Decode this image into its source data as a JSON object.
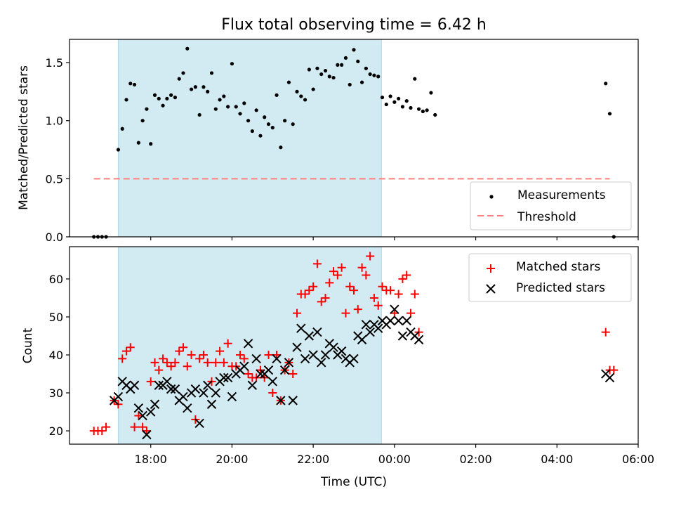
{
  "chart_data": [
    {
      "type": "scatter",
      "title": "Flux total observing time = 6.42 h",
      "ylabel": "Matched/Predicted stars",
      "xlabel": "",
      "xlim_hours": [
        16.0,
        30.0
      ],
      "ylim": [
        0,
        1.7
      ],
      "yticks": [
        0.0,
        0.5,
        1.0,
        1.5
      ],
      "ytick_labels": [
        "0.0",
        "0.5",
        "1.0",
        "1.5"
      ],
      "grid": false,
      "legend_position": "lower-right",
      "shaded_interval_hours": [
        17.2,
        23.68
      ],
      "shade_color": "#add8e6",
      "threshold": {
        "name": "Threshold",
        "value": 0.5,
        "x_range_hours": [
          16.6,
          29.3
        ],
        "color": "#ff7f7f",
        "style": "dashed"
      },
      "series": [
        {
          "name": "Measurements",
          "marker": "dot",
          "color": "#000000",
          "points": [
            [
              16.6,
              0.0
            ],
            [
              16.7,
              0.0
            ],
            [
              16.8,
              0.0
            ],
            [
              16.9,
              0.0
            ],
            [
              17.2,
              0.75
            ],
            [
              17.3,
              0.93
            ],
            [
              17.4,
              1.18
            ],
            [
              17.5,
              1.32
            ],
            [
              17.6,
              1.31
            ],
            [
              17.7,
              0.81
            ],
            [
              17.8,
              1.0
            ],
            [
              17.9,
              1.1
            ],
            [
              18.0,
              0.8
            ],
            [
              18.1,
              1.22
            ],
            [
              18.2,
              1.19
            ],
            [
              18.3,
              1.13
            ],
            [
              18.4,
              1.19
            ],
            [
              18.5,
              1.22
            ],
            [
              18.6,
              1.2
            ],
            [
              18.7,
              1.36
            ],
            [
              18.8,
              1.41
            ],
            [
              18.9,
              1.62
            ],
            [
              19.0,
              1.27
            ],
            [
              19.1,
              1.29
            ],
            [
              19.2,
              1.05
            ],
            [
              19.3,
              1.29
            ],
            [
              19.4,
              1.25
            ],
            [
              19.5,
              1.41
            ],
            [
              19.6,
              1.1
            ],
            [
              19.7,
              1.18
            ],
            [
              19.8,
              1.21
            ],
            [
              19.9,
              1.12
            ],
            [
              20.0,
              1.49
            ],
            [
              20.1,
              1.12
            ],
            [
              20.2,
              1.06
            ],
            [
              20.3,
              1.15
            ],
            [
              20.4,
              1.0
            ],
            [
              20.5,
              0.91
            ],
            [
              20.6,
              1.09
            ],
            [
              20.7,
              0.87
            ],
            [
              20.8,
              1.03
            ],
            [
              20.9,
              0.97
            ],
            [
              21.0,
              0.94
            ],
            [
              21.1,
              1.22
            ],
            [
              21.2,
              0.77
            ],
            [
              21.3,
              1.0
            ],
            [
              21.4,
              1.33
            ],
            [
              21.5,
              0.97
            ],
            [
              21.6,
              1.25
            ],
            [
              21.7,
              1.21
            ],
            [
              21.8,
              1.18
            ],
            [
              21.9,
              1.44
            ],
            [
              22.0,
              1.27
            ],
            [
              22.1,
              1.45
            ],
            [
              22.2,
              1.4
            ],
            [
              22.3,
              1.43
            ],
            [
              22.4,
              1.38
            ],
            [
              22.5,
              1.37
            ],
            [
              22.6,
              1.48
            ],
            [
              22.7,
              1.48
            ],
            [
              22.8,
              1.54
            ],
            [
              22.9,
              1.31
            ],
            [
              23.0,
              1.61
            ],
            [
              23.1,
              1.51
            ],
            [
              23.2,
              1.33
            ],
            [
              23.3,
              1.45
            ],
            [
              23.4,
              1.4
            ],
            [
              23.5,
              1.39
            ],
            [
              23.6,
              1.38
            ],
            [
              23.7,
              1.2
            ],
            [
              23.8,
              1.14
            ],
            [
              23.9,
              1.21
            ],
            [
              24.0,
              1.16
            ],
            [
              24.1,
              1.19
            ],
            [
              24.2,
              1.12
            ],
            [
              24.3,
              1.17
            ],
            [
              24.4,
              1.11
            ],
            [
              24.5,
              1.36
            ],
            [
              24.6,
              1.1
            ],
            [
              24.7,
              1.08
            ],
            [
              24.8,
              1.09
            ],
            [
              24.9,
              1.24
            ],
            [
              25.0,
              1.05
            ],
            [
              29.2,
              1.32
            ],
            [
              29.3,
              1.06
            ],
            [
              29.4,
              0.0
            ]
          ]
        }
      ]
    },
    {
      "type": "scatter",
      "title": "",
      "ylabel": "Count",
      "xlabel": "Time (UTC)",
      "xlim_hours": [
        16.0,
        30.0
      ],
      "xticks_hours": [
        18,
        20,
        22,
        24,
        26,
        28,
        30
      ],
      "xtick_labels": [
        "18:00",
        "20:00",
        "22:00",
        "00:00",
        "02:00",
        "04:00",
        "06:00"
      ],
      "ylim": [
        16.5,
        68.5
      ],
      "yticks": [
        20,
        30,
        40,
        50,
        60
      ],
      "ytick_labels": [
        "20",
        "30",
        "40",
        "50",
        "60"
      ],
      "grid": false,
      "legend_position": "upper-right",
      "shaded_interval_hours": [
        17.2,
        23.68
      ],
      "shade_color": "#add8e6",
      "series": [
        {
          "name": "Matched stars",
          "marker": "plus",
          "color": "#ff0000",
          "points": [
            [
              16.6,
              20
            ],
            [
              16.7,
              20
            ],
            [
              16.8,
              20
            ],
            [
              16.9,
              21
            ],
            [
              17.1,
              28
            ],
            [
              17.2,
              27
            ],
            [
              17.3,
              39
            ],
            [
              17.4,
              41
            ],
            [
              17.5,
              42
            ],
            [
              17.6,
              21
            ],
            [
              17.7,
              24
            ],
            [
              17.8,
              21
            ],
            [
              17.9,
              20
            ],
            [
              18.0,
              33
            ],
            [
              18.1,
              38
            ],
            [
              18.2,
              36
            ],
            [
              18.3,
              39
            ],
            [
              18.4,
              38
            ],
            [
              18.5,
              37
            ],
            [
              18.6,
              38
            ],
            [
              18.7,
              41
            ],
            [
              18.8,
              42
            ],
            [
              18.9,
              37
            ],
            [
              19.0,
              40
            ],
            [
              19.1,
              23
            ],
            [
              19.2,
              39
            ],
            [
              19.3,
              40
            ],
            [
              19.4,
              38
            ],
            [
              19.5,
              33
            ],
            [
              19.6,
              38
            ],
            [
              19.7,
              41
            ],
            [
              19.8,
              38
            ],
            [
              19.9,
              43
            ],
            [
              20.0,
              37
            ],
            [
              20.1,
              37
            ],
            [
              20.2,
              40
            ],
            [
              20.3,
              39
            ],
            [
              20.4,
              35
            ],
            [
              20.5,
              34
            ],
            [
              20.6,
              34
            ],
            [
              20.7,
              36
            ],
            [
              20.8,
              34
            ],
            [
              20.9,
              40
            ],
            [
              21.0,
              30
            ],
            [
              21.1,
              40
            ],
            [
              21.2,
              28
            ],
            [
              21.3,
              36
            ],
            [
              21.4,
              38
            ],
            [
              21.5,
              35
            ],
            [
              21.6,
              51
            ],
            [
              21.7,
              56
            ],
            [
              21.8,
              56
            ],
            [
              21.9,
              57
            ],
            [
              22.0,
              58
            ],
            [
              22.1,
              64
            ],
            [
              22.2,
              54
            ],
            [
              22.3,
              55
            ],
            [
              22.4,
              59
            ],
            [
              22.5,
              62
            ],
            [
              22.6,
              61
            ],
            [
              22.7,
              63
            ],
            [
              22.8,
              51
            ],
            [
              22.9,
              58
            ],
            [
              23.0,
              57
            ],
            [
              23.1,
              52
            ],
            [
              23.2,
              63
            ],
            [
              23.3,
              61
            ],
            [
              23.4,
              66
            ],
            [
              23.5,
              55
            ],
            [
              23.6,
              53
            ],
            [
              23.7,
              58
            ],
            [
              23.8,
              57
            ],
            [
              23.9,
              57
            ],
            [
              24.0,
              51
            ],
            [
              24.1,
              56
            ],
            [
              24.2,
              60
            ],
            [
              24.3,
              61
            ],
            [
              24.4,
              51
            ],
            [
              24.5,
              56
            ],
            [
              24.6,
              46
            ],
            [
              29.2,
              46
            ],
            [
              29.3,
              36
            ],
            [
              29.4,
              36
            ]
          ]
        },
        {
          "name": "Predicted stars",
          "marker": "x",
          "color": "#000000",
          "points": [
            [
              17.1,
              28
            ],
            [
              17.2,
              29
            ],
            [
              17.3,
              33
            ],
            [
              17.4,
              32
            ],
            [
              17.5,
              31
            ],
            [
              17.6,
              32
            ],
            [
              17.7,
              26
            ],
            [
              17.8,
              24
            ],
            [
              17.9,
              19
            ],
            [
              18.0,
              25
            ],
            [
              18.1,
              27
            ],
            [
              18.2,
              32
            ],
            [
              18.3,
              32
            ],
            [
              18.4,
              33
            ],
            [
              18.5,
              31
            ],
            [
              18.6,
              31
            ],
            [
              18.7,
              28
            ],
            [
              18.8,
              29
            ],
            [
              18.9,
              26
            ],
            [
              19.0,
              30
            ],
            [
              19.1,
              31
            ],
            [
              19.2,
              22
            ],
            [
              19.3,
              30
            ],
            [
              19.4,
              32
            ],
            [
              19.5,
              27
            ],
            [
              19.6,
              30
            ],
            [
              19.7,
              33
            ],
            [
              19.8,
              34
            ],
            [
              19.9,
              34
            ],
            [
              20.0,
              29
            ],
            [
              20.1,
              35
            ],
            [
              20.2,
              36
            ],
            [
              20.3,
              37
            ],
            [
              20.4,
              43
            ],
            [
              20.5,
              32
            ],
            [
              20.6,
              39
            ],
            [
              20.7,
              35
            ],
            [
              20.8,
              35
            ],
            [
              20.9,
              36
            ],
            [
              21.0,
              33
            ],
            [
              21.1,
              39
            ],
            [
              21.2,
              28
            ],
            [
              21.3,
              36
            ],
            [
              21.4,
              38
            ],
            [
              21.5,
              28
            ],
            [
              21.6,
              42
            ],
            [
              21.7,
              47
            ],
            [
              21.8,
              39
            ],
            [
              21.9,
              45
            ],
            [
              22.0,
              40
            ],
            [
              22.1,
              46
            ],
            [
              22.2,
              38
            ],
            [
              22.3,
              40
            ],
            [
              22.4,
              43
            ],
            [
              22.5,
              42
            ],
            [
              22.6,
              40
            ],
            [
              22.7,
              41
            ],
            [
              22.8,
              39
            ],
            [
              22.9,
              38
            ],
            [
              23.0,
              39
            ],
            [
              23.1,
              45
            ],
            [
              23.2,
              44
            ],
            [
              23.3,
              48
            ],
            [
              23.4,
              46
            ],
            [
              23.5,
              48
            ],
            [
              23.6,
              47
            ],
            [
              23.7,
              49
            ],
            [
              23.8,
              48
            ],
            [
              23.9,
              49
            ],
            [
              24.0,
              52
            ],
            [
              24.1,
              49
            ],
            [
              24.2,
              45
            ],
            [
              24.3,
              49
            ],
            [
              24.4,
              46
            ],
            [
              24.5,
              45
            ],
            [
              24.6,
              44
            ],
            [
              29.2,
              35
            ],
            [
              29.3,
              34
            ]
          ]
        }
      ]
    }
  ]
}
